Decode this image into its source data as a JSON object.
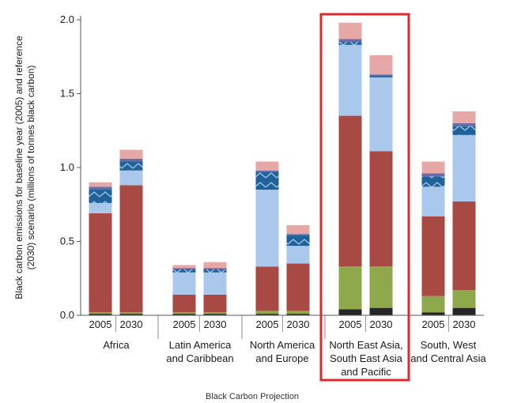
{
  "chart_data": {
    "type": "bar",
    "stacked": true,
    "ylabel_line1": "Black carbon emissions for baseline year (2005) and reference",
    "ylabel_line2": "(2030) scenario (millions of tonnes black carbon)",
    "xlabel": "Black Carbon Projection",
    "ylim": [
      0,
      2.0
    ],
    "yticks": [
      "0.0",
      "0.5",
      "1.0",
      "1.5",
      "2.0"
    ],
    "ytick_values": [
      0,
      0.5,
      1.0,
      1.5,
      2.0
    ],
    "grid": false,
    "legend": "none",
    "groups": [
      {
        "label_lines": [
          "Africa"
        ],
        "bars": [
          {
            "year": "2005",
            "segments": [
              0.01,
              0.01,
              0.67,
              0.07,
              0.09,
              0.02,
              0.03
            ]
          },
          {
            "year": "2030",
            "segments": [
              0.01,
              0.01,
              0.86,
              0.1,
              0.06,
              0.02,
              0.06
            ]
          }
        ]
      },
      {
        "label_lines": [
          "Latin America",
          "and Caribbean"
        ],
        "bars": [
          {
            "year": "2005",
            "segments": [
              0.01,
              0.01,
              0.12,
              0.15,
              0.02,
              0.01,
              0.02
            ]
          },
          {
            "year": "2030",
            "segments": [
              0.01,
              0.01,
              0.12,
              0.15,
              0.02,
              0.01,
              0.04
            ]
          }
        ]
      },
      {
        "label_lines": [
          "North America",
          "and Europe"
        ],
        "bars": [
          {
            "year": "2005",
            "segments": [
              0.01,
              0.02,
              0.3,
              0.52,
              0.12,
              0.01,
              0.06
            ]
          },
          {
            "year": "2030",
            "segments": [
              0.01,
              0.02,
              0.32,
              0.12,
              0.07,
              0.01,
              0.06
            ]
          }
        ]
      },
      {
        "label_lines": [
          "North East Asia,",
          "South East Asia",
          "and Pacific"
        ],
        "highlighted": true,
        "bars": [
          {
            "year": "2005",
            "segments": [
              0.04,
              0.29,
              1.02,
              0.48,
              0.02,
              0.02,
              0.11
            ]
          },
          {
            "year": "2030",
            "segments": [
              0.05,
              0.28,
              0.78,
              0.5,
              0.01,
              0.01,
              0.13
            ]
          }
        ]
      },
      {
        "label_lines": [
          "South, West",
          "and Central Asia"
        ],
        "bars": [
          {
            "year": "2005",
            "segments": [
              0.02,
              0.11,
              0.54,
              0.2,
              0.07,
              0.02,
              0.08
            ]
          },
          {
            "year": "2030",
            "segments": [
              0.05,
              0.12,
              0.6,
              0.45,
              0.06,
              0.02,
              0.08
            ]
          }
        ]
      }
    ],
    "segment_colors": [
      "#262626",
      "#8ea84b",
      "#a84944",
      "#a9c8ec",
      "#1f6199",
      "#6a6aa5",
      "#e6a8a6"
    ],
    "hatched_segment_index": 4,
    "highlight_color": "#e0282e"
  }
}
